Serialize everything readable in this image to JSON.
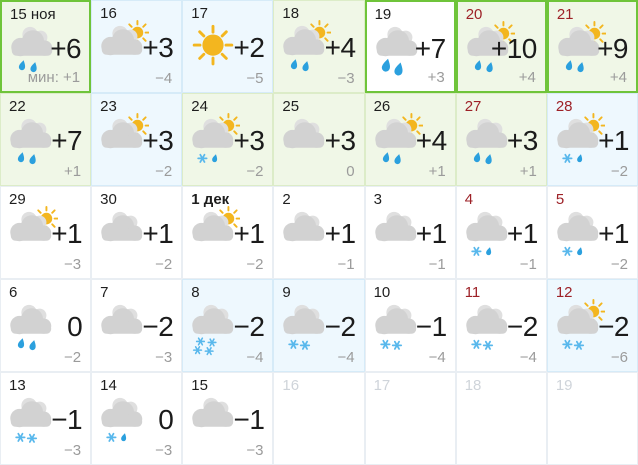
{
  "calendar": {
    "month_labels": {
      "november": "ноя",
      "december": "дек"
    },
    "cells": [
      {
        "date": "15 ноя",
        "date_style": "normal",
        "icon": "cloud-rain",
        "day": "+6",
        "night": "мин: +1",
        "bg": "green",
        "highlight": true
      },
      {
        "date": "16",
        "date_style": "normal",
        "icon": "sun-cloud",
        "day": "+3",
        "night": "−4",
        "bg": "blue",
        "highlight": false
      },
      {
        "date": "17",
        "date_style": "normal",
        "icon": "sun",
        "day": "+2",
        "night": "−5",
        "bg": "blue",
        "highlight": false
      },
      {
        "date": "18",
        "date_style": "normal",
        "icon": "sun-cloud-rain",
        "day": "+4",
        "night": "−3",
        "bg": "green",
        "highlight": false
      },
      {
        "date": "19",
        "date_style": "normal",
        "icon": "cloud-rain-heavy",
        "day": "+7",
        "night": "+3",
        "bg": "white",
        "highlight": true
      },
      {
        "date": "20",
        "date_style": "weekend",
        "icon": "sun-cloud-rain",
        "day": "+10",
        "night": "+4",
        "bg": "green",
        "highlight": true
      },
      {
        "date": "21",
        "date_style": "weekend",
        "icon": "sun-cloud-rain",
        "day": "+9",
        "night": "+4",
        "bg": "green",
        "highlight": true
      },
      {
        "date": "22",
        "date_style": "normal",
        "icon": "cloud-rain",
        "day": "+7",
        "night": "+1",
        "bg": "green",
        "highlight": false
      },
      {
        "date": "23",
        "date_style": "normal",
        "icon": "sun-cloud",
        "day": "+3",
        "night": "−2",
        "bg": "blue",
        "highlight": false
      },
      {
        "date": "24",
        "date_style": "normal",
        "icon": "sun-cloud-sleet",
        "day": "+3",
        "night": "−2",
        "bg": "green",
        "highlight": false
      },
      {
        "date": "25",
        "date_style": "normal",
        "icon": "cloud",
        "day": "+3",
        "night": "0",
        "bg": "green",
        "highlight": false
      },
      {
        "date": "26",
        "date_style": "normal",
        "icon": "sun-cloud-rain",
        "day": "+4",
        "night": "+1",
        "bg": "green",
        "highlight": false
      },
      {
        "date": "27",
        "date_style": "weekend",
        "icon": "cloud-rain",
        "day": "+3",
        "night": "+1",
        "bg": "green",
        "highlight": false
      },
      {
        "date": "28",
        "date_style": "weekend",
        "icon": "sun-cloud-sleet",
        "day": "+1",
        "night": "−2",
        "bg": "blue",
        "highlight": false
      },
      {
        "date": "29",
        "date_style": "normal",
        "icon": "sun-cloud",
        "day": "+1",
        "night": "−3",
        "bg": "white",
        "highlight": false
      },
      {
        "date": "30",
        "date_style": "normal",
        "icon": "cloud",
        "day": "+1",
        "night": "−2",
        "bg": "white",
        "highlight": false
      },
      {
        "date": "1 дек",
        "date_style": "bold",
        "icon": "sun-cloud",
        "day": "+1",
        "night": "−2",
        "bg": "white",
        "highlight": false
      },
      {
        "date": "2",
        "date_style": "normal",
        "icon": "cloud",
        "day": "+1",
        "night": "−1",
        "bg": "white",
        "highlight": false
      },
      {
        "date": "3",
        "date_style": "normal",
        "icon": "cloud",
        "day": "+1",
        "night": "−1",
        "bg": "white",
        "highlight": false
      },
      {
        "date": "4",
        "date_style": "weekend",
        "icon": "cloud-sleet",
        "day": "+1",
        "night": "−1",
        "bg": "white",
        "highlight": false
      },
      {
        "date": "5",
        "date_style": "weekend",
        "icon": "cloud-sleet",
        "day": "+1",
        "night": "−2",
        "bg": "white",
        "highlight": false
      },
      {
        "date": "6",
        "date_style": "normal",
        "icon": "cloud-rain",
        "day": "0",
        "night": "−2",
        "bg": "white",
        "highlight": false
      },
      {
        "date": "7",
        "date_style": "normal",
        "icon": "cloud",
        "day": "−2",
        "night": "−3",
        "bg": "white",
        "highlight": false
      },
      {
        "date": "8",
        "date_style": "normal",
        "icon": "cloud-snow-heavy",
        "day": "−2",
        "night": "−4",
        "bg": "blue",
        "highlight": false
      },
      {
        "date": "9",
        "date_style": "normal",
        "icon": "cloud-snow",
        "day": "−2",
        "night": "−4",
        "bg": "blue",
        "highlight": false
      },
      {
        "date": "10",
        "date_style": "normal",
        "icon": "cloud-snow",
        "day": "−1",
        "night": "−4",
        "bg": "white",
        "highlight": false
      },
      {
        "date": "11",
        "date_style": "weekend",
        "icon": "cloud-snow",
        "day": "−2",
        "night": "−4",
        "bg": "white",
        "highlight": false
      },
      {
        "date": "12",
        "date_style": "weekend",
        "icon": "sun-cloud-snow",
        "day": "−2",
        "night": "−6",
        "bg": "blue",
        "highlight": false
      },
      {
        "date": "13",
        "date_style": "normal",
        "icon": "cloud-snow",
        "day": "−1",
        "night": "−3",
        "bg": "white",
        "highlight": false
      },
      {
        "date": "14",
        "date_style": "normal",
        "icon": "cloud-sleet",
        "day": "0",
        "night": "−3",
        "bg": "white",
        "highlight": false
      },
      {
        "date": "15",
        "date_style": "normal",
        "icon": "cloud",
        "day": "−1",
        "night": "−3",
        "bg": "white",
        "highlight": false
      },
      {
        "date": "16",
        "date_style": "muted",
        "icon": null,
        "day": "",
        "night": "",
        "bg": "white",
        "highlight": false
      },
      {
        "date": "17",
        "date_style": "muted",
        "icon": null,
        "day": "",
        "night": "",
        "bg": "white",
        "highlight": false
      },
      {
        "date": "18",
        "date_style": "muted",
        "icon": null,
        "day": "",
        "night": "",
        "bg": "white",
        "highlight": false
      },
      {
        "date": "19",
        "date_style": "muted",
        "icon": null,
        "day": "",
        "night": "",
        "bg": "white",
        "highlight": false
      }
    ]
  },
  "colors": {
    "accent_green_border": "#6fc43a",
    "bg_green": "#f0f7e7",
    "bg_blue": "#eef8fe",
    "weekend_red": "#9d2127",
    "muted_gray": "#cfd4da",
    "night_gray": "#9b9b9b",
    "cloud_gray": "#d2d2d2",
    "cloud_gray_light": "#dfdfdf",
    "sun_yellow": "#f3b61f",
    "rain_blue": "#2ba0de",
    "snow_blue": "#59b8ec"
  }
}
